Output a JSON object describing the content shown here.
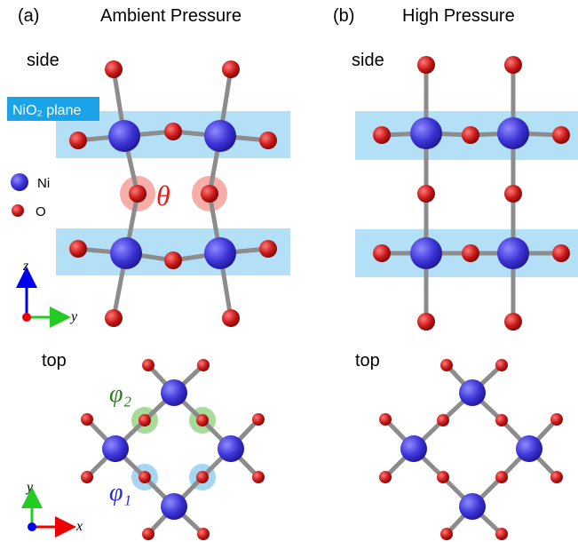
{
  "panels": [
    {
      "label": "(a)",
      "title": "Ambient Pressure",
      "side": "side",
      "top": "top"
    },
    {
      "label": "(b)",
      "title": "High Pressure",
      "side": "side",
      "top": "top"
    }
  ],
  "plane_label": "NiO₂ plane",
  "legend": {
    "ni": "Ni",
    "o": "O"
  },
  "angles": {
    "theta": "θ",
    "phi2": "φ₂",
    "phi1": "φ₁"
  },
  "axes": {
    "side": {
      "vertical": "z",
      "horizontal": "y"
    },
    "top": {
      "vertical": "y",
      "horizontal": "x"
    }
  }
}
